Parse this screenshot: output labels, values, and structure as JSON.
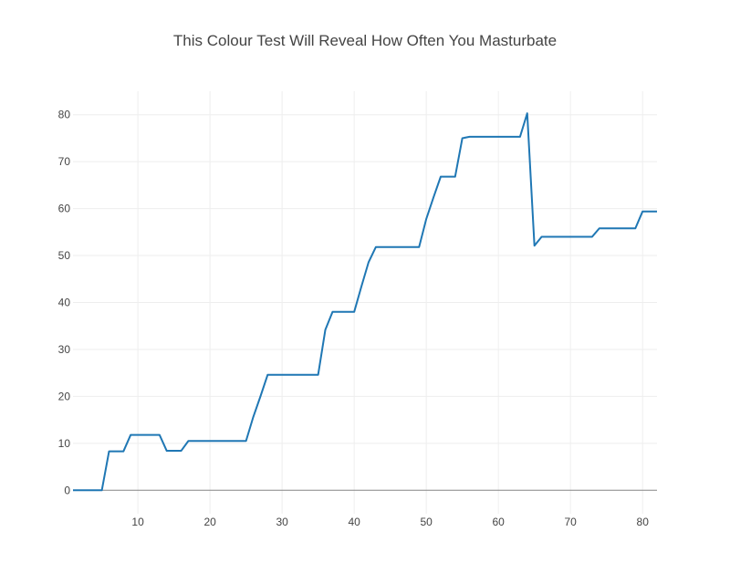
{
  "chart_data": {
    "type": "line",
    "title": "This Colour Test Will Reveal How Often You Masturbate",
    "xlabel": "",
    "ylabel": "",
    "xlim": [
      1,
      82
    ],
    "ylim": [
      -5,
      85
    ],
    "grid": true,
    "colors": {
      "series": "#1f77b4",
      "grid": "#eeeeee",
      "text": "#444444"
    },
    "x_ticks": [
      10,
      20,
      30,
      40,
      50,
      60,
      70,
      80
    ],
    "y_ticks": [
      0,
      10,
      20,
      30,
      40,
      50,
      60,
      70,
      80
    ],
    "series": [
      {
        "x": [
          1,
          2,
          3,
          4,
          5,
          6,
          7,
          8,
          9,
          10,
          11,
          12,
          13,
          14,
          15,
          16,
          17,
          18,
          19,
          20,
          21,
          22,
          23,
          24,
          25,
          26,
          27,
          28,
          29,
          30,
          31,
          32,
          33,
          34,
          35,
          36,
          37,
          38,
          39,
          40,
          41,
          42,
          43,
          44,
          45,
          46,
          47,
          48,
          49,
          50,
          51,
          52,
          53,
          54,
          55,
          56,
          57,
          58,
          59,
          60,
          61,
          62,
          63,
          64,
          65,
          66,
          67,
          68,
          69,
          70,
          71,
          72,
          73,
          74,
          75,
          76,
          77,
          78,
          79,
          80,
          81,
          82
        ],
        "y": [
          0,
          0,
          0,
          0,
          0,
          8.3,
          8.3,
          8.3,
          11.8,
          11.8,
          11.8,
          11.8,
          11.8,
          8.4,
          8.4,
          8.4,
          10.5,
          10.5,
          10.5,
          10.5,
          10.5,
          10.5,
          10.5,
          10.5,
          10.5,
          15.6,
          20.0,
          24.6,
          24.6,
          24.6,
          24.6,
          24.6,
          24.6,
          24.6,
          24.6,
          34.2,
          38.0,
          38.0,
          38.0,
          38.0,
          43.4,
          48.6,
          51.8,
          51.8,
          51.8,
          51.8,
          51.8,
          51.8,
          51.8,
          57.8,
          62.4,
          66.8,
          66.8,
          66.8,
          75.0,
          75.3,
          75.3,
          75.3,
          75.3,
          75.3,
          75.3,
          75.3,
          75.3,
          80.3,
          52.1,
          54.0,
          54.0,
          54.0,
          54.0,
          54.0,
          54.0,
          54.0,
          54.0,
          55.8,
          55.8,
          55.8,
          55.8,
          55.8,
          55.8,
          59.4,
          59.4,
          59.4
        ]
      }
    ]
  }
}
